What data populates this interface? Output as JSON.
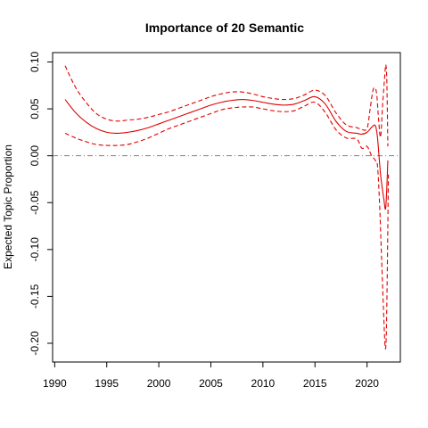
{
  "chart_data": {
    "type": "line",
    "title": "Importance of 20 Semantic",
    "xlabel": "",
    "ylabel": "Expected Topic Proportion",
    "xlim": [
      1989.8,
      2023.2
    ],
    "ylim": [
      -0.22,
      0.11
    ],
    "xticks": [
      1990,
      1995,
      2000,
      2005,
      2010,
      2015,
      2020
    ],
    "xtick_labels": [
      "1990",
      "1995",
      "2000",
      "2005",
      "2010",
      "2015",
      "2020"
    ],
    "yticks": [
      -0.2,
      -0.15,
      -0.1,
      -0.05,
      0.0,
      0.05,
      0.1
    ],
    "ytick_labels": [
      "-0.20",
      "-0.15",
      "-0.10",
      "-0.05",
      "0.00",
      "0.05",
      "0.10"
    ],
    "reference_line": {
      "y": 0.0,
      "color": "#808080",
      "style": "dot-dash"
    },
    "grid": false,
    "series": [
      {
        "role": "estimate",
        "color": "#e00000",
        "style": "solid",
        "x": [
          1991,
          1992,
          1993,
          1994,
          1995,
          1996,
          1997,
          1998,
          1999,
          2000,
          2001,
          2002,
          2003,
          2004,
          2005,
          2006,
          2007,
          2008,
          2009,
          2010,
          2011,
          2012,
          2013,
          2014,
          2015,
          2016,
          2017,
          2018,
          2019,
          2019.5,
          2020,
          2020.5,
          2020.8,
          2021,
          2021.3,
          2021.6,
          2021.8,
          2022
        ],
        "y": [
          0.06,
          0.046,
          0.036,
          0.029,
          0.025,
          0.024,
          0.025,
          0.027,
          0.03,
          0.034,
          0.038,
          0.042,
          0.046,
          0.05,
          0.054,
          0.057,
          0.059,
          0.06,
          0.059,
          0.057,
          0.055,
          0.054,
          0.055,
          0.059,
          0.063,
          0.055,
          0.037,
          0.026,
          0.024,
          0.023,
          0.025,
          0.031,
          0.032,
          0.02,
          -0.02,
          -0.045,
          -0.055,
          -0.005
        ]
      },
      {
        "role": "upper-ci",
        "color": "#e00000",
        "style": "dashed",
        "x": [
          1991,
          1992,
          1993,
          1994,
          1995,
          1996,
          1997,
          1998,
          1999,
          2000,
          2001,
          2002,
          2003,
          2004,
          2005,
          2006,
          2007,
          2008,
          2009,
          2010,
          2011,
          2012,
          2013,
          2014,
          2015,
          2016,
          2017,
          2018,
          2019,
          2019.5,
          2020,
          2020.3,
          2020.6,
          2020.9,
          2021.1,
          2021.3,
          2021.5,
          2021.7,
          2021.8,
          2021.9,
          2022
        ],
        "y": [
          0.096,
          0.073,
          0.057,
          0.045,
          0.039,
          0.037,
          0.038,
          0.039,
          0.041,
          0.044,
          0.047,
          0.051,
          0.055,
          0.059,
          0.063,
          0.066,
          0.068,
          0.068,
          0.066,
          0.063,
          0.061,
          0.06,
          0.061,
          0.065,
          0.07,
          0.064,
          0.046,
          0.033,
          0.03,
          0.028,
          0.029,
          0.05,
          0.071,
          0.068,
          0.04,
          0.02,
          0.055,
          0.085,
          0.097,
          0.08,
          0.01
        ]
      },
      {
        "role": "lower-ci",
        "color": "#e00000",
        "style": "dashed",
        "x": [
          1991,
          1992,
          1993,
          1994,
          1995,
          1996,
          1997,
          1998,
          1999,
          2000,
          2001,
          2002,
          2003,
          2004,
          2005,
          2006,
          2007,
          2008,
          2009,
          2010,
          2011,
          2012,
          2013,
          2014,
          2015,
          2016,
          2017,
          2018,
          2019,
          2019.5,
          2020,
          2020.4,
          2020.8,
          2021,
          2021.2,
          2021.4,
          2021.6,
          2021.75,
          2021.85,
          2021.95,
          2022.05
        ],
        "y": [
          0.024,
          0.019,
          0.015,
          0.012,
          0.011,
          0.011,
          0.012,
          0.015,
          0.019,
          0.024,
          0.029,
          0.033,
          0.037,
          0.041,
          0.045,
          0.049,
          0.051,
          0.052,
          0.052,
          0.05,
          0.048,
          0.047,
          0.048,
          0.053,
          0.057,
          0.046,
          0.028,
          0.019,
          0.018,
          0.008,
          0.01,
          0.001,
          -0.005,
          -0.01,
          -0.05,
          -0.11,
          -0.17,
          -0.205,
          -0.19,
          -0.12,
          -0.02
        ]
      }
    ]
  }
}
